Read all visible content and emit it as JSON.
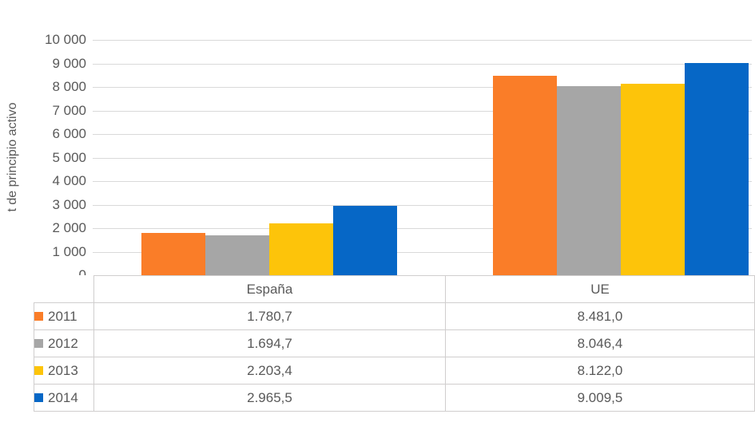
{
  "chart_data": {
    "type": "bar",
    "title": "",
    "categories": [
      "España",
      "UE"
    ],
    "series": [
      {
        "name": "2011",
        "color": "#FA7D28",
        "values": [
          1780.7,
          8481.0
        ]
      },
      {
        "name": "2012",
        "color": "#A6A6A6",
        "values": [
          1694.7,
          8046.4
        ]
      },
      {
        "name": "2013",
        "color": "#FDC40A",
        "values": [
          2203.4,
          8122.0
        ]
      },
      {
        "name": "2014",
        "color": "#0667C6",
        "values": [
          2965.5,
          9009.5
        ]
      }
    ],
    "xlabel": "",
    "ylabel": "t de principio activo",
    "ylim": [
      0,
      10000
    ],
    "ytick_step": 1000,
    "ytick_labels": [
      "0",
      "1 000",
      "2 000",
      "3 000",
      "4 000",
      "5 000",
      "6 000",
      "7 000",
      "8 000",
      "9 000",
      "10 000"
    ],
    "grid": true,
    "legend_position": "table-left"
  },
  "table": {
    "column_headers": [
      "España",
      "UE"
    ],
    "rows": [
      {
        "year": "2011",
        "color": "#FA7D28",
        "values": [
          "1.780,7",
          "8.481,0"
        ]
      },
      {
        "year": "2012",
        "color": "#A6A6A6",
        "values": [
          "1.694,7",
          "8.046,4"
        ]
      },
      {
        "year": "2013",
        "color": "#FDC40A",
        "values": [
          "2.203,4",
          "8.122,0"
        ]
      },
      {
        "year": "2014",
        "color": "#0667C6",
        "values": [
          "2.965,5",
          "9.009,5"
        ]
      }
    ]
  },
  "colors": {
    "text": "#595959",
    "gridline": "#D9D9D9",
    "table_border": "#D0CECE"
  }
}
